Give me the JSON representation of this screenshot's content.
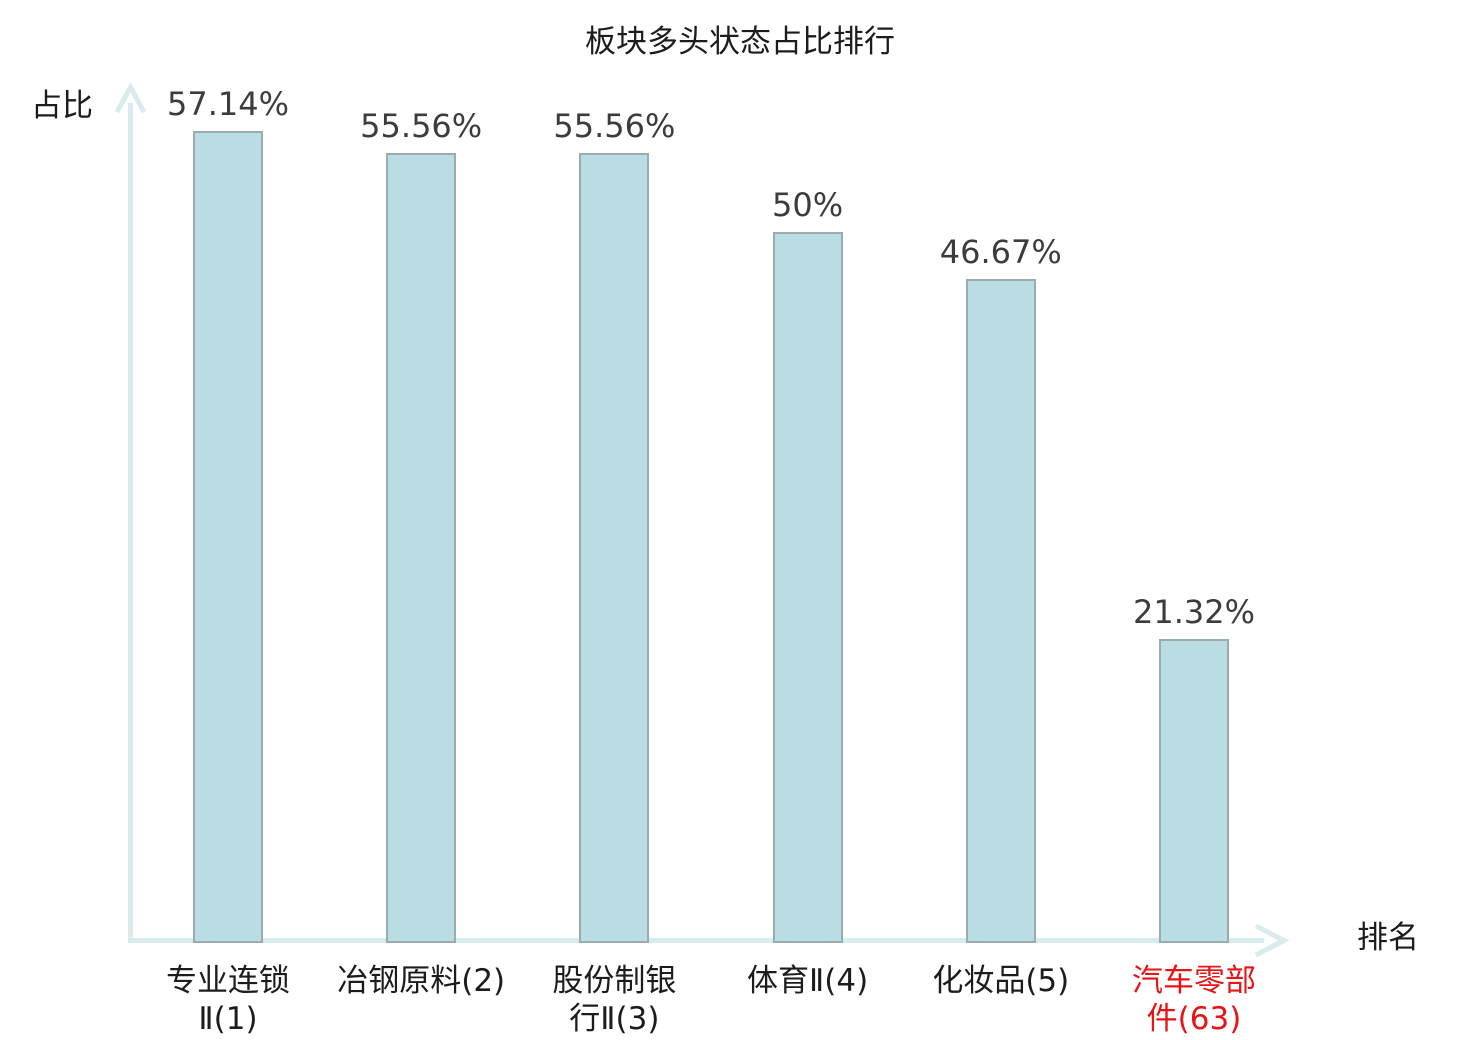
{
  "page": {
    "title": "板块多头状态占比排行",
    "y_axis_label": "占比",
    "x_axis_label": "排名"
  },
  "colors": {
    "bar_fill": "#b9dde2",
    "bar_border": "#9aacb0",
    "axis": "#d8ecee",
    "text": "#1c1c1c",
    "value_text": "#3c3c3c",
    "highlight_text": "#e61414",
    "background": "#ffffff"
  },
  "chart_data": {
    "type": "bar",
    "title": "板块多头状态占比排行",
    "xlabel": "排名",
    "ylabel": "占比",
    "categories": [
      "专业连锁Ⅱ(1)",
      "冶钢原料(2)",
      "股份制银行Ⅱ(3)",
      "体育Ⅱ(4)",
      "化妆品(5)",
      "汽车零部件(63)"
    ],
    "category_label_lines": [
      [
        "专业连锁",
        "Ⅱ(1)"
      ],
      [
        "冶钢原料(2)"
      ],
      [
        "股份制银",
        "行Ⅱ(3)"
      ],
      [
        "体育Ⅱ(4)"
      ],
      [
        "化妆品(5)"
      ],
      [
        "汽车零部",
        "件(63)"
      ]
    ],
    "values": [
      57.14,
      55.56,
      55.56,
      50,
      46.67,
      21.32
    ],
    "value_labels": [
      "57.14%",
      "55.56%",
      "55.56%",
      "50%",
      "46.67%",
      "21.32%"
    ],
    "unit": "%",
    "highlighted_category_index": 5,
    "highlighted_category": "汽车零部件(63)",
    "ylim": [
      0,
      60
    ],
    "grid": false,
    "legend": null,
    "bar_color": "#b9dde2",
    "highlight_label_color": "#e61414"
  }
}
